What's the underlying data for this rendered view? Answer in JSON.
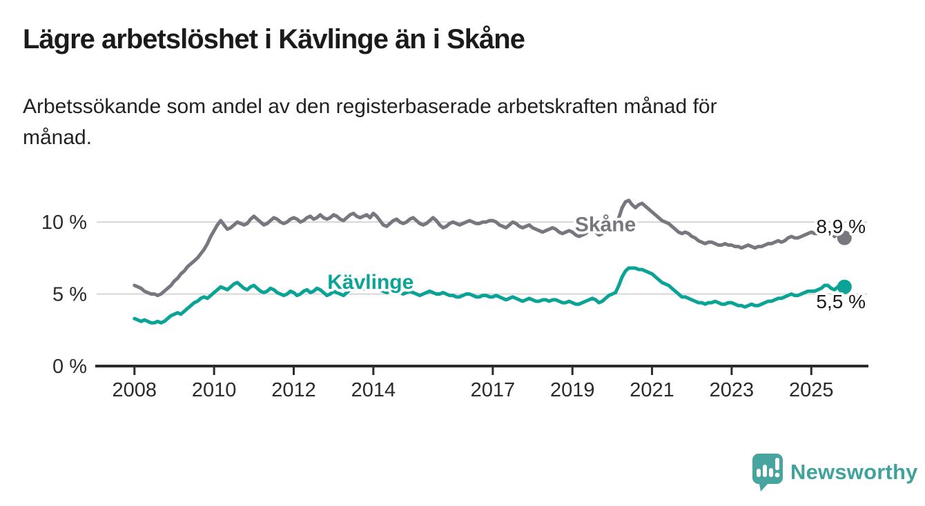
{
  "page": {
    "title": "Lägre arbetslöshet i Kävlinge än i Skåne",
    "subtitle": "Arbetssökande som andel av den registerbaserade arbetskraften månad för månad."
  },
  "footer": {
    "brand": "Newsworthy"
  },
  "colors": {
    "skane": "#77777f",
    "kavlinge": "#0aa396",
    "grid": "#d6d6d6",
    "axis": "#2b2b2b",
    "tick_text": "#2b2b2b",
    "value_text": "#1a1a1a",
    "brand": "#3fa29c",
    "background": "#ffffff"
  },
  "chart_data": {
    "type": "line",
    "title": "Lägre arbetslöshet i Kävlinge än i Skåne",
    "subtitle": "Arbetssökande som andel av den registerbaserade arbetskraften månad för månad.",
    "unit": "%",
    "x_start_year": 2008,
    "x_step_months": 1,
    "xlim": [
      2007.05,
      2026.4
    ],
    "ylim": [
      0,
      13.45
    ],
    "grid": "horizontal-only",
    "legend_position": "inline-labels",
    "y_ticks": [
      {
        "value": 0,
        "label": "0 %"
      },
      {
        "value": 5,
        "label": "5 %"
      },
      {
        "value": 10,
        "label": "10 %"
      }
    ],
    "x_ticks": [
      {
        "value": 2008,
        "label": "2008"
      },
      {
        "value": 2010,
        "label": "2010"
      },
      {
        "value": 2012,
        "label": "2012"
      },
      {
        "value": 2014,
        "label": "2014"
      },
      {
        "value": 2017,
        "label": "2017"
      },
      {
        "value": 2019,
        "label": "2019"
      },
      {
        "value": 2021,
        "label": "2021"
      },
      {
        "value": 2023,
        "label": "2023"
      },
      {
        "value": 2025,
        "label": "2025"
      }
    ],
    "series": [
      {
        "id": "skane",
        "name": "Skåne",
        "color": "#77777f",
        "end_label": "8,9 %",
        "end_label_position": "above",
        "name_label": {
          "year": 2019.83,
          "pct": 9.35
        },
        "values": [
          5.6,
          5.5,
          5.4,
          5.2,
          5.1,
          5.0,
          5.0,
          4.9,
          5.0,
          5.2,
          5.4,
          5.6,
          5.9,
          6.1,
          6.4,
          6.6,
          6.9,
          7.1,
          7.3,
          7.5,
          7.8,
          8.1,
          8.5,
          9.0,
          9.4,
          9.8,
          10.1,
          9.8,
          9.5,
          9.6,
          9.8,
          10.0,
          9.9,
          9.8,
          9.9,
          10.2,
          10.4,
          10.2,
          10.0,
          9.8,
          9.9,
          10.1,
          10.3,
          10.2,
          10.0,
          9.9,
          10.0,
          10.2,
          10.3,
          10.2,
          10.0,
          10.1,
          10.3,
          10.4,
          10.2,
          10.3,
          10.5,
          10.3,
          10.2,
          10.3,
          10.5,
          10.4,
          10.2,
          10.1,
          10.3,
          10.5,
          10.6,
          10.4,
          10.3,
          10.4,
          10.5,
          10.3,
          10.6,
          10.4,
          10.1,
          9.8,
          9.7,
          9.9,
          10.1,
          10.2,
          10.0,
          9.9,
          10.0,
          10.2,
          10.3,
          10.1,
          9.9,
          9.8,
          9.9,
          10.1,
          10.3,
          10.1,
          9.8,
          9.6,
          9.7,
          9.9,
          10.0,
          9.9,
          9.8,
          9.9,
          10.0,
          10.1,
          10.0,
          9.9,
          9.9,
          10.0,
          10.0,
          10.1,
          10.1,
          10.0,
          9.8,
          9.7,
          9.6,
          9.8,
          10.0,
          9.9,
          9.7,
          9.6,
          9.7,
          9.8,
          9.6,
          9.5,
          9.4,
          9.3,
          9.4,
          9.5,
          9.6,
          9.5,
          9.3,
          9.2,
          9.3,
          9.4,
          9.3,
          9.1,
          9.0,
          9.1,
          9.2,
          9.4,
          9.5,
          9.3,
          9.1,
          9.2,
          9.4,
          9.5,
          9.5,
          9.7,
          10.3,
          11.0,
          11.4,
          11.5,
          11.2,
          11.0,
          11.2,
          11.3,
          11.1,
          10.9,
          10.7,
          10.5,
          10.3,
          10.1,
          10.0,
          9.9,
          9.7,
          9.5,
          9.3,
          9.2,
          9.3,
          9.2,
          9.0,
          8.9,
          8.7,
          8.6,
          8.5,
          8.6,
          8.6,
          8.5,
          8.4,
          8.4,
          8.5,
          8.4,
          8.4,
          8.3,
          8.3,
          8.2,
          8.3,
          8.4,
          8.3,
          8.2,
          8.3,
          8.3,
          8.4,
          8.5,
          8.5,
          8.6,
          8.7,
          8.6,
          8.7,
          8.9,
          9.0,
          8.9,
          8.9,
          9.0,
          9.1,
          9.2,
          9.3,
          9.2,
          9.2,
          9.3,
          9.5,
          9.4,
          9.2,
          9.0,
          9.2,
          9.0,
          8.9
        ]
      },
      {
        "id": "kavlinge",
        "name": "Kävlinge",
        "color": "#0aa396",
        "end_label": "5,5 %",
        "end_label_position": "below",
        "name_label": {
          "year": 2013.93,
          "pct": 5.36
        },
        "values": [
          3.3,
          3.2,
          3.1,
          3.2,
          3.1,
          3.0,
          3.0,
          3.1,
          3.0,
          3.1,
          3.3,
          3.5,
          3.6,
          3.7,
          3.6,
          3.8,
          4.0,
          4.2,
          4.4,
          4.5,
          4.7,
          4.8,
          4.7,
          4.9,
          5.1,
          5.3,
          5.5,
          5.4,
          5.3,
          5.5,
          5.7,
          5.8,
          5.6,
          5.4,
          5.3,
          5.5,
          5.6,
          5.4,
          5.2,
          5.1,
          5.2,
          5.4,
          5.3,
          5.1,
          5.0,
          4.9,
          5.0,
          5.2,
          5.1,
          4.9,
          5.0,
          5.2,
          5.3,
          5.1,
          5.2,
          5.4,
          5.3,
          5.1,
          4.9,
          5.0,
          5.2,
          5.1,
          5.0,
          4.9,
          5.1,
          5.3,
          5.4,
          5.5,
          5.5,
          5.4,
          5.3,
          5.4,
          5.5,
          5.4,
          5.3,
          5.2,
          5.1,
          5.2,
          5.3,
          5.2,
          5.1,
          5.0,
          5.1,
          5.2,
          5.1,
          5.0,
          4.9,
          5.0,
          5.1,
          5.2,
          5.1,
          5.0,
          5.0,
          5.1,
          5.0,
          4.9,
          4.9,
          4.8,
          4.8,
          4.9,
          5.0,
          5.0,
          4.9,
          4.8,
          4.8,
          4.9,
          4.9,
          4.8,
          4.8,
          4.9,
          4.8,
          4.7,
          4.6,
          4.7,
          4.8,
          4.7,
          4.6,
          4.5,
          4.6,
          4.7,
          4.6,
          4.5,
          4.5,
          4.6,
          4.6,
          4.5,
          4.6,
          4.6,
          4.5,
          4.4,
          4.4,
          4.5,
          4.4,
          4.3,
          4.3,
          4.4,
          4.5,
          4.6,
          4.7,
          4.6,
          4.4,
          4.5,
          4.7,
          4.9,
          5.0,
          5.1,
          5.6,
          6.2,
          6.6,
          6.8,
          6.8,
          6.8,
          6.7,
          6.7,
          6.6,
          6.5,
          6.4,
          6.2,
          6.0,
          5.8,
          5.7,
          5.6,
          5.4,
          5.2,
          5.0,
          4.8,
          4.8,
          4.7,
          4.6,
          4.5,
          4.4,
          4.4,
          4.3,
          4.4,
          4.4,
          4.5,
          4.4,
          4.3,
          4.3,
          4.4,
          4.4,
          4.3,
          4.2,
          4.2,
          4.1,
          4.2,
          4.3,
          4.2,
          4.2,
          4.3,
          4.4,
          4.5,
          4.5,
          4.6,
          4.7,
          4.7,
          4.8,
          4.9,
          5.0,
          4.9,
          4.9,
          5.0,
          5.1,
          5.2,
          5.2,
          5.2,
          5.3,
          5.4,
          5.6,
          5.6,
          5.4,
          5.3,
          5.5,
          5.6,
          5.5
        ]
      }
    ]
  }
}
